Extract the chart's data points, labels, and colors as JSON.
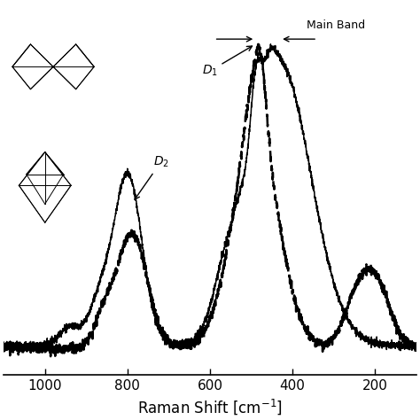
{
  "xlabel": "Raman Shift [cm$^{-1}$]",
  "xlim": [
    1100,
    100
  ],
  "xticks": [
    1000,
    800,
    600,
    400,
    200
  ],
  "ylim": [
    -0.05,
    1.05
  ],
  "background_color": "#ffffff",
  "annotation_D1": "$D_1$",
  "annotation_D2": "$D_2$",
  "annotation_mainband": "Main Band"
}
